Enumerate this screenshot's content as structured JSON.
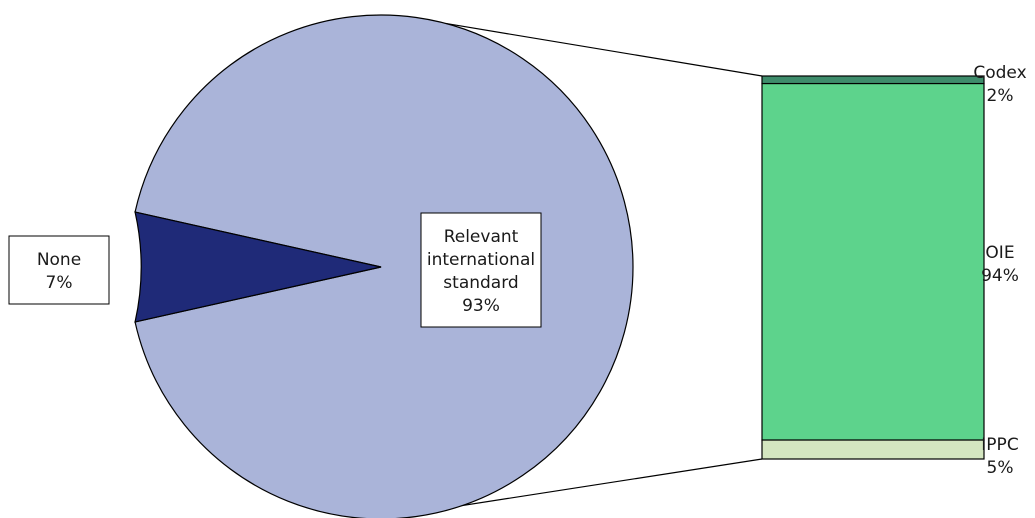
{
  "chart_data": [
    {
      "type": "pie",
      "title": "",
      "slices": [
        {
          "label": "Relevant international standard",
          "label_lines": [
            "Relevant",
            "international",
            "standard"
          ],
          "value": 93,
          "value_label": "93%",
          "color": "#aab4d9"
        },
        {
          "label": "None",
          "label_lines": [
            "None"
          ],
          "value": 7,
          "value_label": "7%",
          "color": "#1f2a78"
        }
      ]
    },
    {
      "type": "bar",
      "stacked": true,
      "title": "",
      "breakdown_of": "Relevant international standard",
      "segments": [
        {
          "label": "Codex",
          "value": 2,
          "value_label": "2%",
          "color": "#3e8c6b"
        },
        {
          "label": "OIE",
          "value": 94,
          "value_label": "94%",
          "color": "#5dd38c"
        },
        {
          "label": "IPPC",
          "value": 5,
          "value_label": "5%",
          "color": "#d4e6c0"
        }
      ]
    }
  ]
}
